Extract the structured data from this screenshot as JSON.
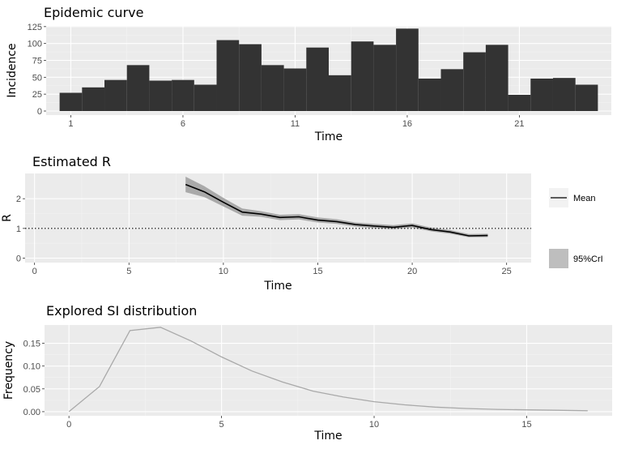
{
  "colors": {
    "panel": "#ebebeb",
    "grid_major": "#ffffff",
    "grid_minor": "#f3f3f3",
    "bar": "#333333",
    "ribbon": "#a9a9a9",
    "mean_line": "#000000",
    "si_line": "#a9a9a9",
    "legend_key": "#bebebe"
  },
  "chart_data": [
    {
      "type": "bar",
      "title": "Epidemic curve",
      "xlabel": "Time",
      "ylabel": "Incidence",
      "xlim": [
        -0.1,
        25.1
      ],
      "ylim": [
        -6,
        126
      ],
      "xticks": [
        1,
        6,
        11,
        16,
        21
      ],
      "yticks": [
        0,
        25,
        50,
        75,
        100,
        125
      ],
      "x": [
        1,
        2,
        3,
        4,
        5,
        6,
        7,
        8,
        9,
        10,
        11,
        12,
        13,
        14,
        15,
        16,
        17,
        18,
        19,
        20,
        21,
        22,
        23,
        24
      ],
      "values": [
        27,
        35,
        46,
        68,
        45,
        46,
        39,
        105,
        99,
        68,
        63,
        94,
        53,
        103,
        98,
        122,
        48,
        62,
        87,
        98,
        24,
        48,
        49,
        39
      ]
    },
    {
      "type": "line",
      "title": "Estimated R",
      "xlabel": "Time",
      "ylabel": "R",
      "xlim": [
        -0.5,
        26.3
      ],
      "ylim": [
        -0.15,
        2.85
      ],
      "xticks": [
        0,
        5,
        10,
        15,
        20,
        25
      ],
      "yticks": [
        0,
        1,
        2
      ],
      "reference_line": 1,
      "series": [
        {
          "name": "Mean",
          "x": [
            8,
            9,
            10,
            11,
            12,
            13,
            14,
            15,
            16,
            17,
            18,
            19,
            20,
            21,
            22,
            23,
            24
          ],
          "values": [
            2.48,
            2.23,
            1.88,
            1.55,
            1.48,
            1.37,
            1.39,
            1.28,
            1.23,
            1.13,
            1.08,
            1.04,
            1.1,
            0.96,
            0.88,
            0.75,
            0.76
          ]
        }
      ],
      "ribbon": {
        "name": "95%CrI",
        "x": [
          8,
          9,
          10,
          11,
          12,
          13,
          14,
          15,
          16,
          17,
          18,
          19,
          20,
          21,
          22,
          23,
          24
        ],
        "lower": [
          2.22,
          2.05,
          1.74,
          1.43,
          1.39,
          1.28,
          1.3,
          1.2,
          1.15,
          1.06,
          1.01,
          0.98,
          1.03,
          0.9,
          0.82,
          0.7,
          0.71
        ],
        "upper": [
          2.74,
          2.42,
          2.03,
          1.67,
          1.58,
          1.46,
          1.48,
          1.37,
          1.31,
          1.2,
          1.15,
          1.11,
          1.17,
          1.03,
          0.95,
          0.81,
          0.82
        ]
      },
      "legend": {
        "position": "right",
        "mean_label": "Mean",
        "cri_label": "95%CrI"
      }
    },
    {
      "type": "line",
      "title": "Explored SI distribution",
      "xlabel": "Time",
      "ylabel": "Frequency",
      "xlim": [
        -0.8,
        17.8
      ],
      "ylim": [
        -0.009,
        0.19
      ],
      "xticks": [
        0,
        5,
        10,
        15
      ],
      "yticks": [
        0.0,
        0.05,
        0.1,
        0.15
      ],
      "ytick_labels": [
        "0.00",
        "0.05",
        "0.10",
        "0.15"
      ],
      "x": [
        0,
        1,
        2,
        3,
        4,
        5,
        6,
        7,
        8,
        9,
        10,
        11,
        12,
        13,
        14,
        15,
        16,
        17
      ],
      "values": [
        0.0,
        0.055,
        0.178,
        0.185,
        0.155,
        0.12,
        0.089,
        0.065,
        0.045,
        0.032,
        0.022,
        0.015,
        0.01,
        0.007,
        0.005,
        0.004,
        0.003,
        0.002
      ]
    }
  ]
}
